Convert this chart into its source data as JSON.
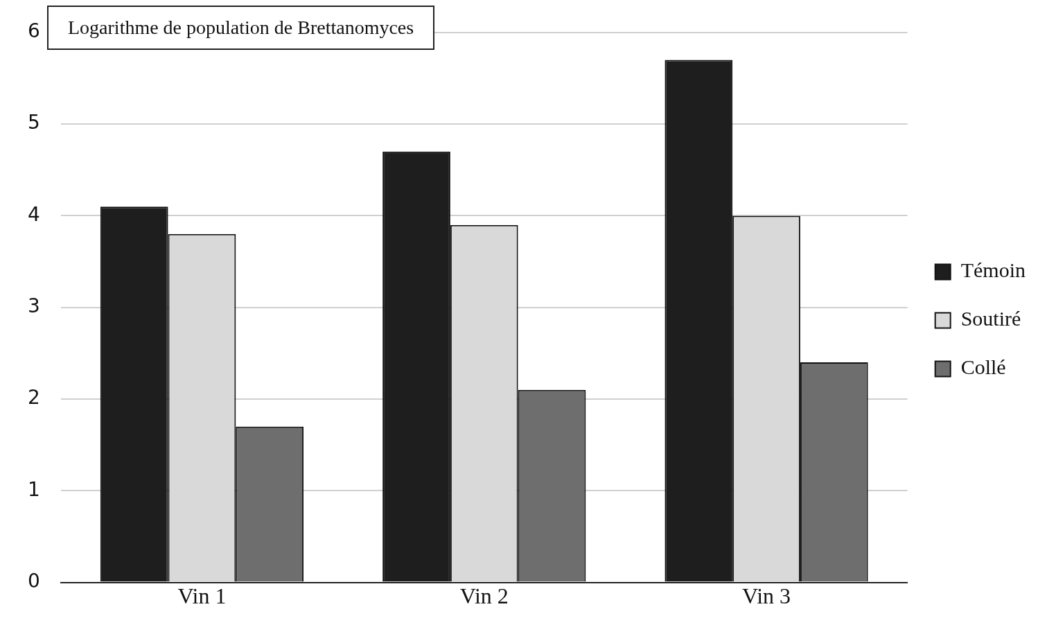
{
  "chart_data": {
    "type": "bar",
    "title": "Logarithme de population de Brettanomyces",
    "categories": [
      "Vin 1",
      "Vin 2",
      "Vin 3"
    ],
    "series": [
      {
        "name": "Témoin",
        "color": "#1e1e1e",
        "values": [
          4.1,
          4.7,
          5.7
        ]
      },
      {
        "name": "Soutiré",
        "color": "#d9d9d9",
        "values": [
          3.8,
          3.9,
          4.0
        ]
      },
      {
        "name": "Collé",
        "color": "#6e6e6e",
        "values": [
          1.7,
          2.1,
          2.4
        ]
      }
    ],
    "ylim": [
      0,
      6
    ],
    "yticks": [
      0,
      1,
      2,
      3,
      4,
      5,
      6
    ],
    "grid": "y",
    "legend": "right"
  }
}
